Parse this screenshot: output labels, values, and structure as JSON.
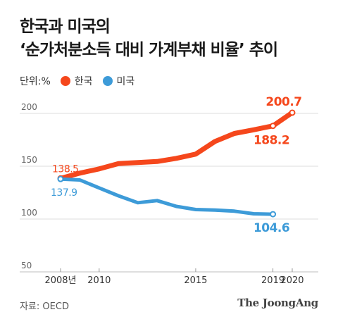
{
  "header": {
    "title_line1": "한국과 미국의",
    "title_line2": "‘순가처분소득 대비 가계부채 비율’ 추이"
  },
  "legend": {
    "unit": "단위:%",
    "items": [
      {
        "label": "한국",
        "color": "#f5471c"
      },
      {
        "label": "미국",
        "color": "#3d9bd8"
      }
    ]
  },
  "footer": {
    "source": "자료: OECD",
    "brand": "The JoongAng"
  },
  "chart_data": {
    "type": "line",
    "ylim": [
      50,
      210
    ],
    "yticks": [
      50,
      100,
      150,
      200
    ],
    "xlim": [
      2007.5,
      2020.5
    ],
    "xticks": [
      {
        "value": 2008,
        "label": "2008년"
      },
      {
        "value": 2010,
        "label": "2010"
      },
      {
        "value": 2015,
        "label": "2015"
      },
      {
        "value": 2019,
        "label": "2019"
      },
      {
        "value": 2020,
        "label": "2020"
      }
    ],
    "grid": true,
    "series": [
      {
        "name": "한국",
        "color": "#f5471c",
        "x": [
          2008,
          2009,
          2010,
          2011,
          2012,
          2013,
          2014,
          2015,
          2016,
          2017,
          2018,
          2019,
          2020
        ],
        "y": [
          138.5,
          143.5,
          147.5,
          152.5,
          153.5,
          154.5,
          157.5,
          161.5,
          173.5,
          181,
          184.5,
          188.2,
          200.7
        ],
        "labels": [
          {
            "x": 2008,
            "text": "138.5",
            "pos": "above-right"
          },
          {
            "x": 2019,
            "text": "188.2",
            "pos": "below-left"
          },
          {
            "x": 2020,
            "text": "200.7",
            "pos": "above-left"
          }
        ]
      },
      {
        "name": "미국",
        "color": "#3d9bd8",
        "x": [
          2008,
          2009,
          2010,
          2011,
          2012,
          2013,
          2014,
          2015,
          2016,
          2017,
          2018,
          2019
        ],
        "y": [
          137.9,
          137.0,
          129.5,
          122.0,
          115.5,
          117.5,
          112.0,
          109.0,
          108.5,
          107.5,
          105.0,
          104.6
        ],
        "labels": [
          {
            "x": 2008,
            "text": "137.9",
            "pos": "below-right"
          },
          {
            "x": 2019,
            "text": "104.6",
            "pos": "below"
          }
        ]
      }
    ]
  }
}
